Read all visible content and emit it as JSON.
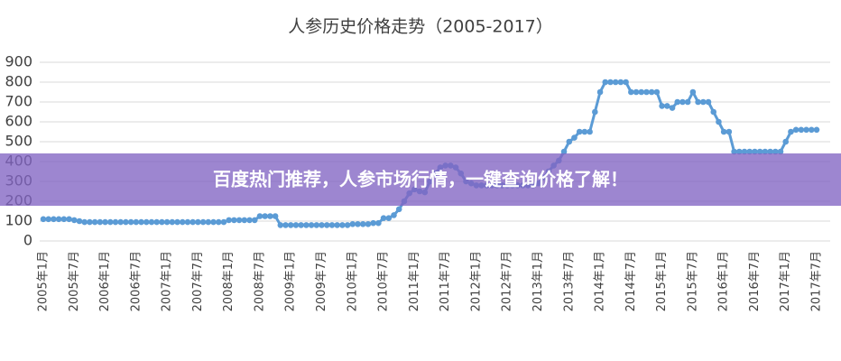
{
  "chart_data": {
    "type": "line",
    "title": "人参历史价格走势（2005-2017）",
    "categories": [
      "2005年1月",
      null,
      null,
      null,
      null,
      null,
      "2005年7月",
      null,
      null,
      null,
      null,
      null,
      "2006年1月",
      null,
      null,
      null,
      null,
      null,
      "2006年7月",
      null,
      null,
      null,
      null,
      null,
      "2007年1月",
      null,
      null,
      null,
      null,
      null,
      "2007年7月",
      null,
      null,
      null,
      null,
      null,
      "2008年1月",
      null,
      null,
      null,
      null,
      null,
      "2008年7月",
      null,
      null,
      null,
      null,
      null,
      "2009年1月",
      null,
      null,
      null,
      null,
      null,
      "2009年7月",
      null,
      null,
      null,
      null,
      null,
      "2010年1月",
      null,
      null,
      null,
      null,
      null,
      "2010年7月",
      null,
      null,
      null,
      null,
      null,
      "2011年1月",
      null,
      null,
      null,
      null,
      null,
      "2011年7月",
      null,
      null,
      null,
      null,
      null,
      "2012年1月",
      null,
      null,
      null,
      null,
      null,
      "2012年7月",
      null,
      null,
      null,
      null,
      null,
      "2013年1月",
      null,
      null,
      null,
      null,
      null,
      "2013年7月",
      null,
      null,
      null,
      null,
      null,
      "2014年1月",
      null,
      null,
      null,
      null,
      null,
      "2014年7月",
      null,
      null,
      null,
      null,
      null,
      "2015年1月",
      null,
      null,
      null,
      null,
      null,
      "2015年7月",
      null,
      null,
      null,
      null,
      null,
      "2016年1月",
      null,
      null,
      null,
      null,
      null,
      "2016年7月",
      null,
      null,
      null,
      null,
      null,
      "2017年1月",
      null,
      null,
      null,
      null,
      null,
      "2017年7月"
    ],
    "series": [
      {
        "color": "#5b9bd5",
        "values": [
          110,
          110,
          110,
          110,
          110,
          110,
          105,
          100,
          95,
          95,
          95,
          95,
          95,
          95,
          95,
          95,
          95,
          95,
          95,
          95,
          95,
          95,
          95,
          95,
          95,
          95,
          95,
          95,
          95,
          95,
          95,
          95,
          95,
          95,
          95,
          95,
          105,
          105,
          105,
          105,
          105,
          105,
          125,
          125,
          125,
          125,
          80,
          80,
          80,
          80,
          80,
          80,
          80,
          80,
          80,
          80,
          80,
          80,
          80,
          80,
          85,
          85,
          85,
          85,
          90,
          90,
          115,
          115,
          130,
          160,
          200,
          240,
          260,
          250,
          245,
          300,
          340,
          370,
          380,
          380,
          370,
          340,
          300,
          290,
          280,
          280,
          280,
          280,
          280,
          280,
          280,
          280,
          280,
          280,
          280,
          280,
          290,
          320,
          350,
          380,
          405,
          450,
          500,
          520,
          550,
          550,
          550,
          650,
          750,
          800,
          800,
          800,
          800,
          800,
          750,
          750,
          750,
          750,
          750,
          750,
          680,
          680,
          670,
          700,
          700,
          700,
          750,
          700,
          700,
          700,
          650,
          600,
          550,
          550,
          450,
          450,
          450,
          450,
          450,
          450,
          450,
          450,
          450,
          450,
          500,
          550,
          560,
          560,
          560,
          560,
          560
        ]
      }
    ],
    "ylim": [
      0,
      900
    ],
    "yticks": [
      0,
      100,
      200,
      300,
      400,
      500,
      600,
      700,
      800,
      900
    ],
    "grid": true
  },
  "banner": {
    "text": "百度热门推荐，人参市场行情，一键查询价格了解！"
  }
}
